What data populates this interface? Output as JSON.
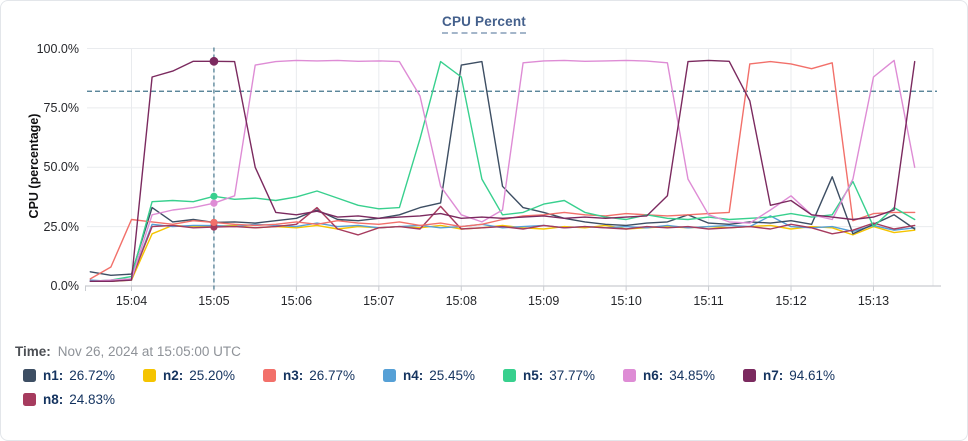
{
  "footer": {
    "time_label": "Time:",
    "time_value": "Nov 26, 2024 at 15:05:00 UTC"
  },
  "colors": {
    "grid": "#e9ebee",
    "axis": "#c9ccd1",
    "crosshair": "#44758c",
    "title_accent": "#44608c"
  },
  "chart_data": {
    "type": "line",
    "title": "CPU Percent",
    "ylabel": "CPU (percentage)",
    "ylim": [
      0,
      100
    ],
    "grid": true,
    "legend_position": "bottom",
    "x_start_time": "15:03:30",
    "x_step_seconds": 15,
    "seconds_before_first_tick": 30,
    "x_tick_labels": [
      "15:04",
      "15:05",
      "15:06",
      "15:07",
      "15:08",
      "15:09",
      "15:10",
      "15:11",
      "15:12",
      "15:13"
    ],
    "y_ticks": [
      {
        "label": "100.0%",
        "value": 100
      },
      {
        "label": "75.0%",
        "value": 75
      },
      {
        "label": "50.0%",
        "value": 50
      },
      {
        "label": "25.0%",
        "value": 25
      },
      {
        "label": "0.0%",
        "value": 0
      }
    ],
    "crosshair": {
      "x_time": "15:05",
      "x_index": 6,
      "threshold_percent": 82
    },
    "series": [
      {
        "name": "n1",
        "color": "#3d4e63",
        "value_at_cursor": "26.72%",
        "values": [
          6,
          4.5,
          5,
          33,
          27,
          28,
          26.72,
          27,
          26.5,
          27.5,
          28.5,
          32,
          28,
          27.5,
          28.5,
          30,
          33,
          35,
          93,
          94.5,
          42,
          33,
          31,
          28.5,
          27,
          26,
          25.5,
          26.5,
          27,
          30,
          26.5,
          26,
          27,
          26.5,
          27.5,
          26,
          46,
          22,
          26,
          30,
          24
        ]
      },
      {
        "name": "n2",
        "color": "#f5c400",
        "value_at_cursor": "25.20%",
        "values": [
          2,
          2,
          2.5,
          22,
          25.5,
          25,
          25.2,
          25.5,
          24.5,
          25,
          24.5,
          25.5,
          24,
          25,
          24.5,
          25,
          24.5,
          25.5,
          24,
          24.5,
          25.5,
          24.5,
          24,
          25,
          24.5,
          25.5,
          24,
          24.5,
          25,
          24.5,
          25,
          24.5,
          25,
          25.5,
          24,
          25,
          24.5,
          21.5,
          25,
          22.5,
          23.5
        ]
      },
      {
        "name": "n3",
        "color": "#f2706a",
        "value_at_cursor": "26.77%",
        "values": [
          3,
          8,
          28,
          27,
          26,
          27.5,
          26.77,
          26,
          25.5,
          26,
          27,
          26,
          27.5,
          26.5,
          26,
          27,
          25.5,
          26.5,
          25,
          26,
          28,
          29.5,
          30,
          31,
          30,
          29.5,
          30.5,
          30,
          29.5,
          30,
          30.5,
          31,
          93.5,
          94.5,
          93.5,
          91.5,
          94,
          27.5,
          30.5,
          31,
          31
        ]
      },
      {
        "name": "n4",
        "color": "#56a0d6",
        "value_at_cursor": "25.45%",
        "values": [
          2.5,
          2,
          3,
          26,
          25,
          25.5,
          25.45,
          25,
          26,
          25.5,
          25,
          26.5,
          25,
          25.5,
          24.5,
          25,
          25.5,
          24.5,
          25,
          26,
          24.5,
          25,
          25.5,
          24.5,
          25,
          24.5,
          25,
          24.5,
          25.5,
          24.5,
          25,
          25.5,
          25,
          29.5,
          25,
          24.5,
          25,
          23,
          25.5,
          23.5,
          24.5
        ]
      },
      {
        "name": "n5",
        "color": "#38d08e",
        "value_at_cursor": "37.77%",
        "values": [
          2,
          2.5,
          4,
          35.5,
          36,
          35.5,
          37.77,
          36.5,
          37,
          36,
          37.5,
          40,
          37,
          34,
          32.5,
          33,
          62,
          94.5,
          88,
          45,
          30,
          31,
          34.5,
          36,
          31,
          29,
          28,
          30,
          28.5,
          28,
          29,
          28,
          28.5,
          29,
          30.5,
          29,
          30,
          44,
          25,
          33,
          28
        ]
      },
      {
        "name": "n6",
        "color": "#de8cd5",
        "value_at_cursor": "34.85%",
        "values": [
          2,
          2.5,
          3,
          30,
          32,
          33,
          34.85,
          38,
          93,
          94.5,
          95,
          94.8,
          95,
          94.6,
          94.8,
          94.5,
          80,
          42,
          30,
          27,
          32,
          94,
          94.8,
          95,
          94.6,
          94.8,
          95,
          94.7,
          94,
          45,
          30,
          27,
          26.5,
          32,
          38,
          30,
          28,
          45,
          88,
          95,
          50
        ]
      },
      {
        "name": "n7",
        "color": "#7b2a5f",
        "value_at_cursor": "94.61%",
        "values": [
          2,
          2,
          2.5,
          88,
          90.5,
          94.6,
          94.61,
          94.5,
          50,
          31,
          30,
          31.5,
          29,
          29.5,
          28.5,
          29,
          29.5,
          30.5,
          28.5,
          29,
          28.5,
          29,
          29.5,
          28.5,
          29,
          28.5,
          29,
          29.5,
          38,
          94.5,
          95,
          94.6,
          78,
          34,
          36,
          30,
          29,
          28,
          29,
          32,
          94.5
        ]
      },
      {
        "name": "n8",
        "color": "#a63b5e",
        "value_at_cursor": "24.83%",
        "values": [
          2,
          2,
          3,
          25,
          25.5,
          24.5,
          24.83,
          25,
          24.5,
          25,
          26,
          33,
          24,
          21.5,
          24.5,
          25,
          24,
          33.5,
          24,
          24.5,
          25,
          24,
          25.5,
          24.5,
          25,
          24.5,
          24,
          25,
          24.5,
          25,
          24,
          24.5,
          25,
          24,
          26,
          24.5,
          22,
          23.5,
          26.5,
          24,
          25.5
        ]
      }
    ]
  }
}
